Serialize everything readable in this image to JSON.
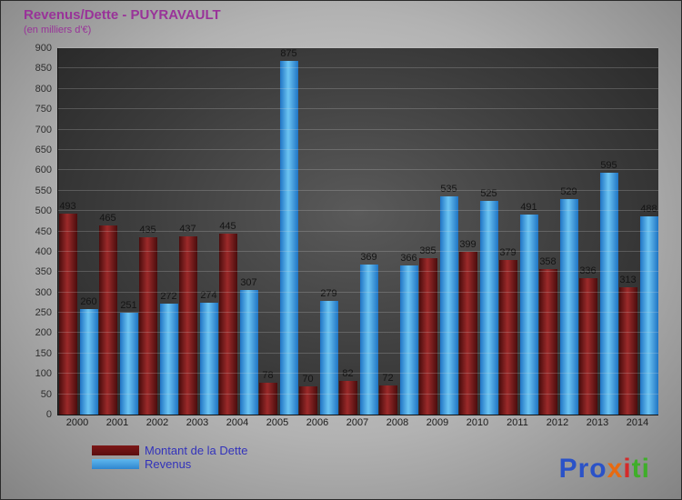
{
  "chart_data": {
    "type": "bar",
    "title": "Revenus/Dette - PUYRAVAULT",
    "subtitle": "(en milliers d'€)",
    "categories": [
      "2000",
      "2001",
      "2002",
      "2003",
      "2004",
      "2005",
      "2006",
      "2007",
      "2008",
      "2009",
      "2010",
      "2011",
      "2012",
      "2013",
      "2014"
    ],
    "series": [
      {
        "name": "Montant de la Dette",
        "color": "#8b1a1a",
        "values": [
          493,
          465,
          435,
          437,
          445,
          78,
          70,
          82,
          72,
          385,
          399,
          379,
          358,
          336,
          313
        ]
      },
      {
        "name": "Revenus",
        "color": "#3d9be0",
        "values": [
          260,
          251,
          272,
          274,
          307,
          875,
          279,
          369,
          366,
          535,
          525,
          491,
          529,
          595,
          488
        ]
      }
    ],
    "ylim": [
      0,
      900
    ],
    "ytick_step": 50,
    "grid": true,
    "legend_position": "bottom-left"
  },
  "logo": {
    "text": "Proxiti",
    "letters": [
      {
        "ch": "P",
        "color": "#2a52c8"
      },
      {
        "ch": "r",
        "color": "#2a52c8"
      },
      {
        "ch": "o",
        "color": "#2a52c8"
      },
      {
        "ch": "x",
        "color": "#e86a10"
      },
      {
        "ch": "i",
        "color": "#d42a2a"
      },
      {
        "ch": "t",
        "color": "#3fae2a"
      },
      {
        "ch": "i",
        "color": "#3fae2a"
      }
    ]
  },
  "colors": {
    "title": "#993399",
    "legend_text": "#3333bb",
    "dette_bar": "#8b1a1a",
    "revenus_bar": "#3d9be0"
  }
}
